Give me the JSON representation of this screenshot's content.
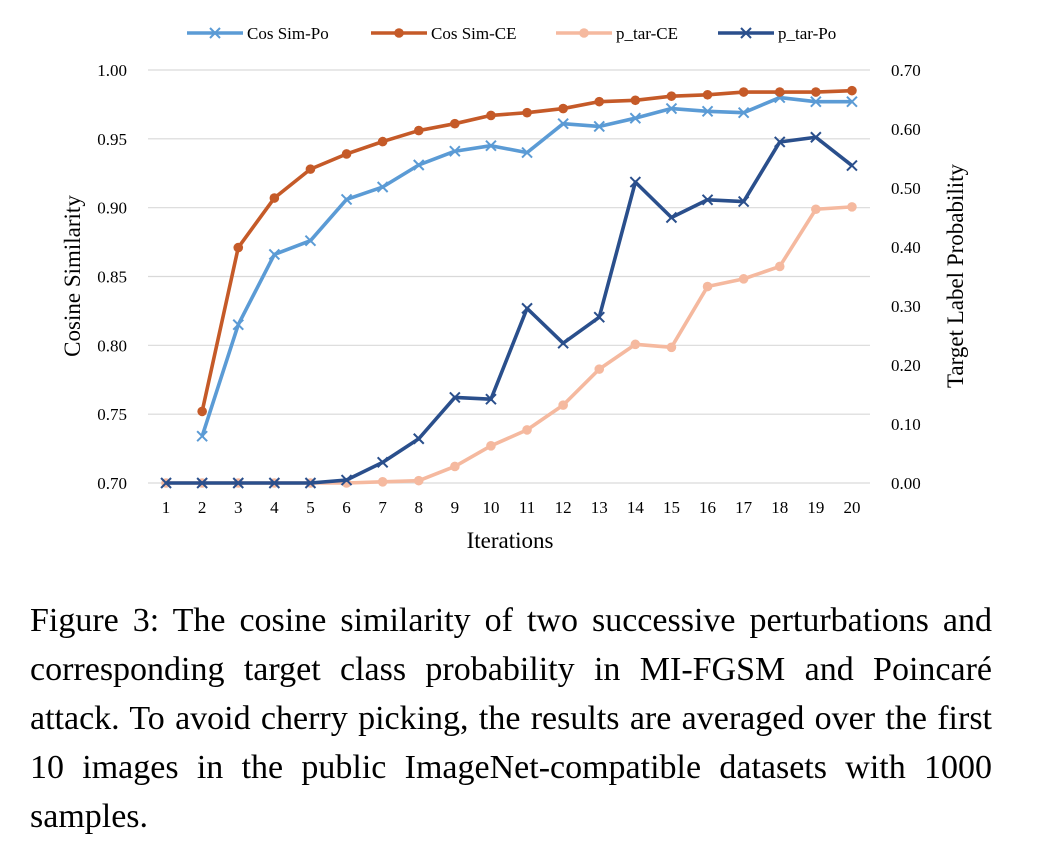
{
  "chart_data": {
    "type": "line",
    "title": "",
    "xlabel": "Iterations",
    "ylabel_left": "Cosine Similarity",
    "ylabel_right": "Target Label Probability",
    "categories": [
      "1",
      "2",
      "3",
      "4",
      "5",
      "6",
      "7",
      "8",
      "9",
      "10",
      "11",
      "12",
      "13",
      "14",
      "15",
      "16",
      "17",
      "18",
      "19",
      "20"
    ],
    "ylim_left": [
      0.7,
      1.0
    ],
    "ylim_right": [
      0.0,
      0.7
    ],
    "yticks_left": [
      "0.70",
      "0.75",
      "0.80",
      "0.85",
      "0.90",
      "0.95",
      "1.00"
    ],
    "yticks_right": [
      "0.00",
      "0.10",
      "0.20",
      "0.30",
      "0.40",
      "0.50",
      "0.60",
      "0.70"
    ],
    "grid": true,
    "legend_position": "top",
    "series": [
      {
        "name": "Cos Sim-Po",
        "axis": "left",
        "marker": "x",
        "color": "#5b9bd5",
        "values": [
          null,
          0.734,
          0.815,
          0.866,
          0.876,
          0.906,
          0.915,
          0.931,
          0.941,
          0.945,
          0.94,
          0.961,
          0.959,
          0.965,
          0.972,
          0.97,
          0.969,
          0.98,
          0.977,
          0.977
        ]
      },
      {
        "name": "Cos Sim-CE",
        "axis": "left",
        "marker": "circle",
        "color": "#c55a28",
        "values": [
          null,
          0.752,
          0.871,
          0.907,
          0.928,
          0.939,
          0.948,
          0.956,
          0.961,
          0.967,
          0.969,
          0.972,
          0.977,
          0.978,
          0.981,
          0.982,
          0.984,
          0.984,
          0.984,
          0.985
        ]
      },
      {
        "name": "p_tar-CE",
        "axis": "right",
        "marker": "circle",
        "color": "#f5b99f",
        "values": [
          0.0,
          0.0,
          0.0,
          0.0,
          0.0,
          0.0,
          0.002,
          0.004,
          0.028,
          0.063,
          0.09,
          0.132,
          0.193,
          0.235,
          0.23,
          0.333,
          0.346,
          0.367,
          0.464,
          0.468
        ]
      },
      {
        "name": "p_tar-Po",
        "axis": "right",
        "marker": "x",
        "color": "#2a4f8c",
        "values": [
          0.0,
          0.0,
          0.0,
          0.0,
          0.0,
          0.005,
          0.035,
          0.075,
          0.145,
          0.142,
          0.296,
          0.237,
          0.281,
          0.51,
          0.45,
          0.48,
          0.477,
          0.578,
          0.586,
          0.538
        ]
      }
    ]
  },
  "caption": "Figure 3: The cosine similarity of two successive perturbations and corresponding target class probability in MI-FGSM and Poincaré attack. To avoid cherry picking, the results are averaged over the first 10 images in the public ImageNet-compatible datasets with 1000 samples."
}
